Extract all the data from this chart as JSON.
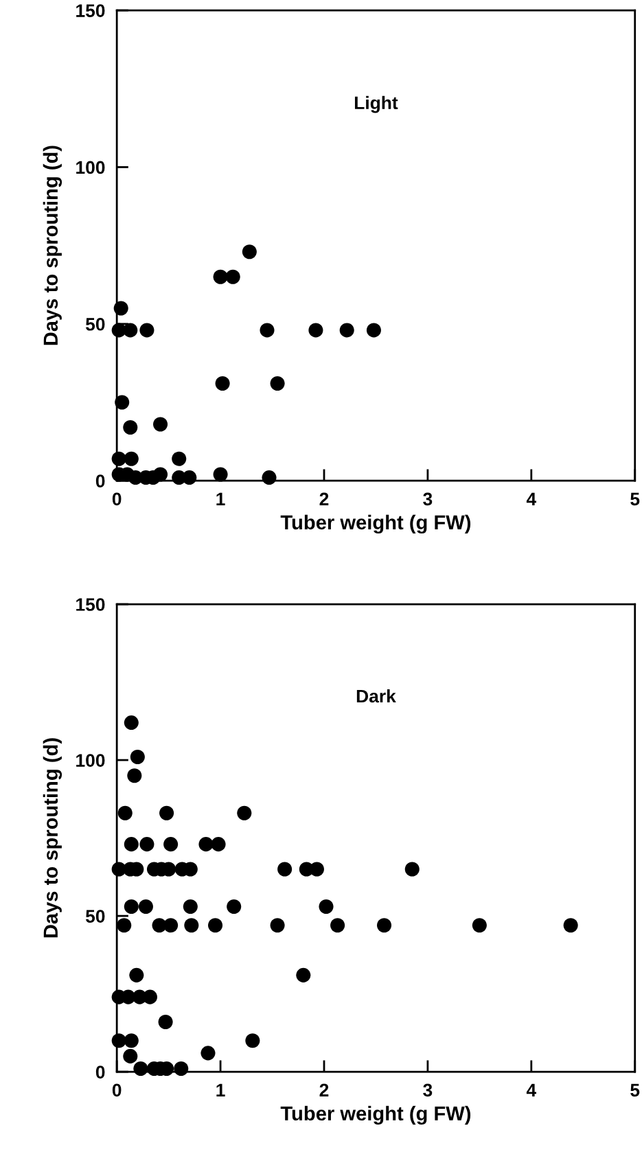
{
  "chart_data": [
    {
      "type": "scatter",
      "title": "Light",
      "xlabel": "Tuber weight (g FW)",
      "ylabel": "Days to sprouting (d)",
      "xlim": [
        0,
        5
      ],
      "ylim": [
        0,
        150
      ],
      "xticks": [
        0,
        1,
        2,
        3,
        4,
        5
      ],
      "yticks": [
        0,
        50,
        100,
        150
      ],
      "grid": false,
      "marker": "circle",
      "series": [
        {
          "color": "#000000",
          "x": [
            0.04,
            0.02,
            0.13,
            0.29,
            1.0,
            1.12,
            1.28,
            1.45,
            1.92,
            2.22,
            2.48,
            1.02,
            1.55,
            0.05,
            0.13,
            0.42,
            0.02,
            0.14,
            0.6,
            0.02,
            0.1,
            0.18,
            0.28,
            0.35,
            0.42,
            0.6,
            0.7,
            1.0,
            1.47
          ],
          "values": [
            55,
            48,
            48,
            48,
            65,
            65,
            73,
            48,
            48,
            48,
            48,
            31,
            31,
            25,
            17,
            18,
            7,
            7,
            7,
            2,
            2,
            1,
            1,
            1,
            2,
            1,
            1,
            2,
            1
          ]
        }
      ]
    },
    {
      "type": "scatter",
      "title": "Dark",
      "xlabel": "Tuber weight (g FW)",
      "ylabel": "Days to sprouting (d)",
      "xlim": [
        0,
        5
      ],
      "ylim": [
        0,
        150
      ],
      "xticks": [
        0,
        1,
        2,
        3,
        4,
        5
      ],
      "yticks": [
        0,
        50,
        100,
        150
      ],
      "grid": false,
      "marker": "circle",
      "series": [
        {
          "color": "#000000",
          "x": [
            0.14,
            0.2,
            0.17,
            0.08,
            0.48,
            1.23,
            0.14,
            0.29,
            0.52,
            0.86,
            0.98,
            0.02,
            0.13,
            0.19,
            0.36,
            0.43,
            0.5,
            0.63,
            0.71,
            1.62,
            1.83,
            1.93,
            2.85,
            0.14,
            0.28,
            0.71,
            1.13,
            2.02,
            0.07,
            0.41,
            0.52,
            0.72,
            0.95,
            1.55,
            2.13,
            2.58,
            3.5,
            4.38,
            0.19,
            1.8,
            0.02,
            0.11,
            0.22,
            0.32,
            0.47,
            0.02,
            0.14,
            1.31,
            0.13,
            0.88,
            0.23,
            0.36,
            0.42,
            0.48,
            0.62
          ],
          "values": [
            112,
            101,
            95,
            83,
            83,
            83,
            73,
            73,
            73,
            73,
            73,
            65,
            65,
            65,
            65,
            65,
            65,
            65,
            65,
            65,
            65,
            65,
            65,
            53,
            53,
            53,
            53,
            53,
            47,
            47,
            47,
            47,
            47,
            47,
            47,
            47,
            47,
            47,
            31,
            31,
            24,
            24,
            24,
            24,
            16,
            10,
            10,
            10,
            5,
            6,
            1,
            1,
            1,
            1,
            1
          ]
        }
      ]
    }
  ]
}
